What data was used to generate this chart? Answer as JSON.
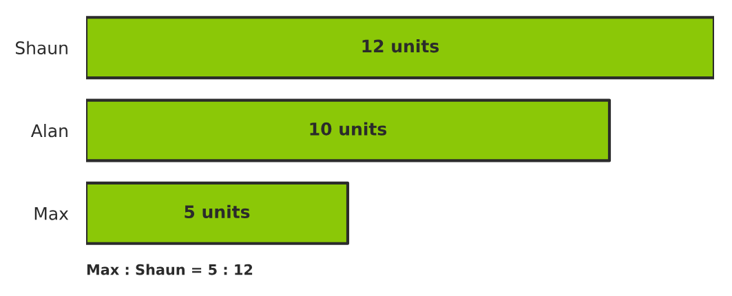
{
  "chart_data": {
    "type": "bar",
    "orientation": "horizontal",
    "categories": [
      "Shaun",
      "Alan",
      "Max"
    ],
    "values": [
      12,
      10,
      5
    ],
    "color": "#8bc807",
    "value_labels": [
      "12 units",
      "10 units",
      "5 units"
    ],
    "tick_labels": "y",
    "grid": false,
    "legend": false,
    "annotations": [
      "Max : Shaun = 5 : 12"
    ]
  }
}
